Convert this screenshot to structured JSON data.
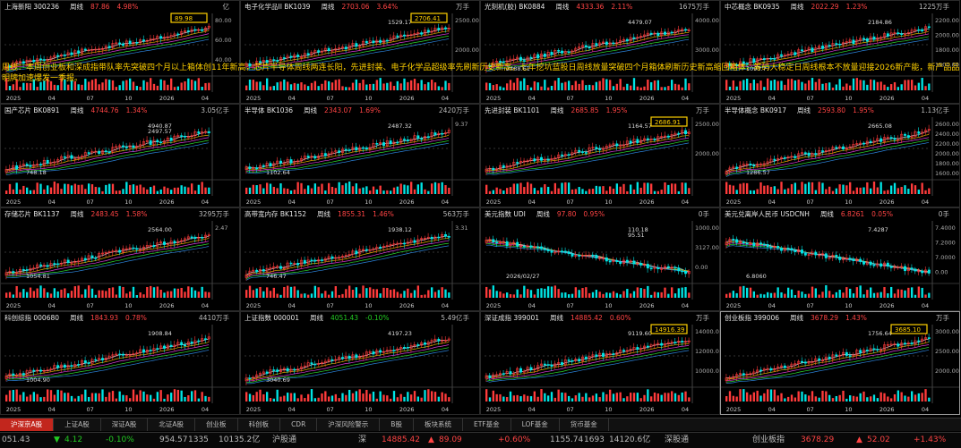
{
  "overlay_text": "周线：本周创业板和深成指带队率先突破四个月以上箱体创11年新高，芯片半导体周线两连长阳，先进封装、电子化学品超级率先刷新历史新高，七年挖坑蓝股日周线放量突破四个月箱体刷新历史新高缩回箱体，筹码大稳定日周线根本不放量迎接2026新产能，新产品品明牌加速爆发一季报。",
  "panels": [
    {
      "name": "上海新阳 300236",
      "period": "周线",
      "price": "87.86",
      "pct": "4.98%",
      "vol": "亿",
      "dir": "up",
      "box_label": "89.98",
      "x_labels": [
        "2025",
        "04",
        "07",
        "10",
        "2026",
        "04"
      ],
      "y_labels": [
        "80.00",
        "60.00",
        "40.00"
      ],
      "extra_labels": []
    },
    {
      "name": "电子化学品II BK1039",
      "period": "周线",
      "price": "2703.06",
      "pct": "3.64%",
      "vol": "万手",
      "dir": "up",
      "box_label": "2706.41",
      "x_labels": [
        "2025",
        "04",
        "07",
        "10",
        "2026",
        "04"
      ],
      "y_labels": [
        "2500.00",
        "2000.00"
      ],
      "extra_labels": [
        "1529.17"
      ]
    },
    {
      "name": "光刻机(胶) BK0884",
      "period": "周线",
      "price": "4333.36",
      "pct": "2.11%",
      "vol": "1675万手",
      "dir": "up",
      "box_label": "",
      "x_labels": [
        "2025",
        "04",
        "07",
        "10",
        "2026",
        "04"
      ],
      "y_labels": [
        "4000.00",
        "3000.00"
      ],
      "extra_labels": [
        "4479.07",
        "2488.61"
      ]
    },
    {
      "name": "中芯概念 BK0935",
      "period": "周线",
      "price": "2022.29",
      "pct": "1.23%",
      "vol": "1225万手",
      "dir": "up",
      "box_label": "",
      "x_labels": [
        "2025",
        "04",
        "07",
        "10",
        "2026",
        "04"
      ],
      "y_labels": [
        "2200.00",
        "2000.00",
        "1800.00",
        "1600.00"
      ],
      "extra_labels": [
        "2184.86",
        "1093.77"
      ]
    },
    {
      "name": "国产芯片 BK0891",
      "period": "周线",
      "price": "4744.76",
      "pct": "1.34%",
      "vol": "3.05亿手",
      "dir": "up",
      "box_label": "",
      "x_labels": [
        "2025",
        "04",
        "07",
        "10",
        "2026",
        "04"
      ],
      "y_labels": [],
      "extra_labels": [
        "4940.87",
        "2497.57",
        "748.18"
      ]
    },
    {
      "name": "半导体 BK1036",
      "period": "周线",
      "price": "2343.07",
      "pct": "1.69%",
      "vol": "2420万手",
      "dir": "up",
      "box_label": "",
      "x_labels": [
        "2025",
        "04",
        "07",
        "10",
        "2026",
        "04"
      ],
      "y_labels": [
        "9.37"
      ],
      "extra_labels": [
        "2487.32",
        "1102.64"
      ]
    },
    {
      "name": "先进封装 BK1101",
      "period": "周线",
      "price": "2685.85",
      "pct": "1.95%",
      "vol": "万手",
      "dir": "up",
      "box_label": "2686.91",
      "x_labels": [
        "2025",
        "04",
        "07",
        "10",
        "2026",
        "04"
      ],
      "y_labels": [
        "2500.00",
        "2000.00"
      ],
      "extra_labels": [
        "1164.57"
      ]
    },
    {
      "name": "半导体概念 BK0917",
      "period": "周线",
      "price": "2593.80",
      "pct": "1.95%",
      "vol": "1.13亿手",
      "dir": "up",
      "box_label": "",
      "x_labels": [
        "2025",
        "04",
        "07",
        "10",
        "2026",
        "04"
      ],
      "y_labels": [
        "2600.00",
        "2400.00",
        "2200.00",
        "2000.00",
        "1800.00",
        "1600.00"
      ],
      "extra_labels": [
        "2665.08",
        "1286.57"
      ]
    },
    {
      "name": "存储芯片 BK1137",
      "period": "周线",
      "price": "2483.45",
      "pct": "1.58%",
      "vol": "3295万手",
      "dir": "up",
      "box_label": "",
      "x_labels": [
        "2025",
        "04",
        "07",
        "10",
        "2026",
        "04"
      ],
      "y_labels": [
        "2.47"
      ],
      "extra_labels": [
        "2564.00",
        "1054.81"
      ]
    },
    {
      "name": "高带宽内存 BK1152",
      "period": "周线",
      "price": "1855.31",
      "pct": "1.46%",
      "vol": "563万手",
      "dir": "up",
      "box_label": "",
      "x_labels": [
        "2025",
        "04",
        "07",
        "10",
        "2026",
        "04"
      ],
      "y_labels": [
        "3.31"
      ],
      "extra_labels": [
        "1938.12",
        "746.47"
      ]
    },
    {
      "name": "美元指数 UDI",
      "period": "周线",
      "price": "97.80",
      "pct": "0.95%",
      "vol": "0手",
      "dir": "up",
      "box_label": "",
      "x_labels": [
        "2025",
        "04",
        "07",
        "10",
        "2026",
        "04"
      ],
      "y_labels": [
        "1000.00",
        "3127.00",
        "0.00"
      ],
      "extra_labels": [
        "110.18",
        "95.51",
        "2026/02/27"
      ]
    },
    {
      "name": "美元兑离岸人民币 USDCNH",
      "period": "周线",
      "price": "6.8261",
      "pct": "0.05%",
      "vol": "0手",
      "dir": "up",
      "box_label": "",
      "x_labels": [
        "2025",
        "04",
        "07",
        "10",
        "2026",
        "04"
      ],
      "y_labels": [
        "7.4000",
        "7.2000",
        "7.0000",
        "0.00"
      ],
      "extra_labels": [
        "7.4287",
        "6.8060"
      ]
    },
    {
      "name": "科创综指 000680",
      "period": "周线",
      "price": "1843.93",
      "pct": "0.78%",
      "vol": "4410万手",
      "dir": "up",
      "box_label": "",
      "x_labels": [
        "2025",
        "04",
        "07",
        "10",
        "2026",
        "04"
      ],
      "y_labels": [],
      "extra_labels": [
        "1908.84",
        "1004.90"
      ]
    },
    {
      "name": "上证指数 000001",
      "period": "周线",
      "price": "4051.43",
      "pct": "-0.10%",
      "vol": "5.49亿手",
      "dir": "down",
      "box_label": "",
      "x_labels": [
        "2025",
        "04",
        "07",
        "10",
        "2026",
        "04"
      ],
      "y_labels": [],
      "extra_labels": [
        "4197.23",
        "3040.69"
      ]
    },
    {
      "name": "深证成指 399001",
      "period": "周线",
      "price": "14885.42",
      "pct": "0.60%",
      "vol": "万手",
      "dir": "up",
      "box_label": "14916.39",
      "x_labels": [
        "2025",
        "04",
        "07",
        "10",
        "2026",
        "04"
      ],
      "y_labels": [
        "14000.00",
        "12000.00",
        "10000.00"
      ],
      "extra_labels": [
        "9119.60"
      ]
    },
    {
      "name": "创业板指 399006",
      "period": "周线",
      "price": "3678.29",
      "pct": "1.43%",
      "vol": "万手",
      "dir": "up",
      "box_label": "3685.10",
      "x_labels": [
        "2025",
        "04",
        "07",
        "10",
        "2026",
        "04"
      ],
      "y_labels": [
        "3000.00",
        "2500.00",
        "2000.00"
      ],
      "extra_labels": [
        "1756.64"
      ]
    }
  ],
  "tabs": [
    "沪深京A股",
    "上证A股",
    "深证A股",
    "北证A股",
    "创业板",
    "科创板",
    "CDR",
    "沪深风险警示",
    "B股",
    "板块系统",
    "ETF基金",
    "LOF基金",
    "货币基金"
  ],
  "status": {
    "sh_value": "051.43",
    "sh_arrow": "▼",
    "sh_change": "4.12",
    "sh_pct": "-0.10%",
    "sh_amount": "954.57",
    "sh_amount2": "1335",
    "sh_turnover": "10135.2亿",
    "sh_connect": "沪股通",
    "sz_label": "深",
    "sz_value": "14885.42",
    "sz_arrow": "▲",
    "sz_change": "89.09",
    "sz_pct": "+0.60%",
    "sz_amount": "1155.74",
    "sz_amount2": "1693",
    "sz_turnover": "14120.6亿",
    "sz_connect": "深股通",
    "cy_label": "创业板指",
    "cy_value": "3678.29",
    "cy_arrow": "▲",
    "cy_change": "52.02",
    "cy_pct": "+1.43%"
  },
  "colors": {
    "up": "#ff4444",
    "down": "#22cc22",
    "box": "#ffd000",
    "active_tab": "#c2261d"
  }
}
